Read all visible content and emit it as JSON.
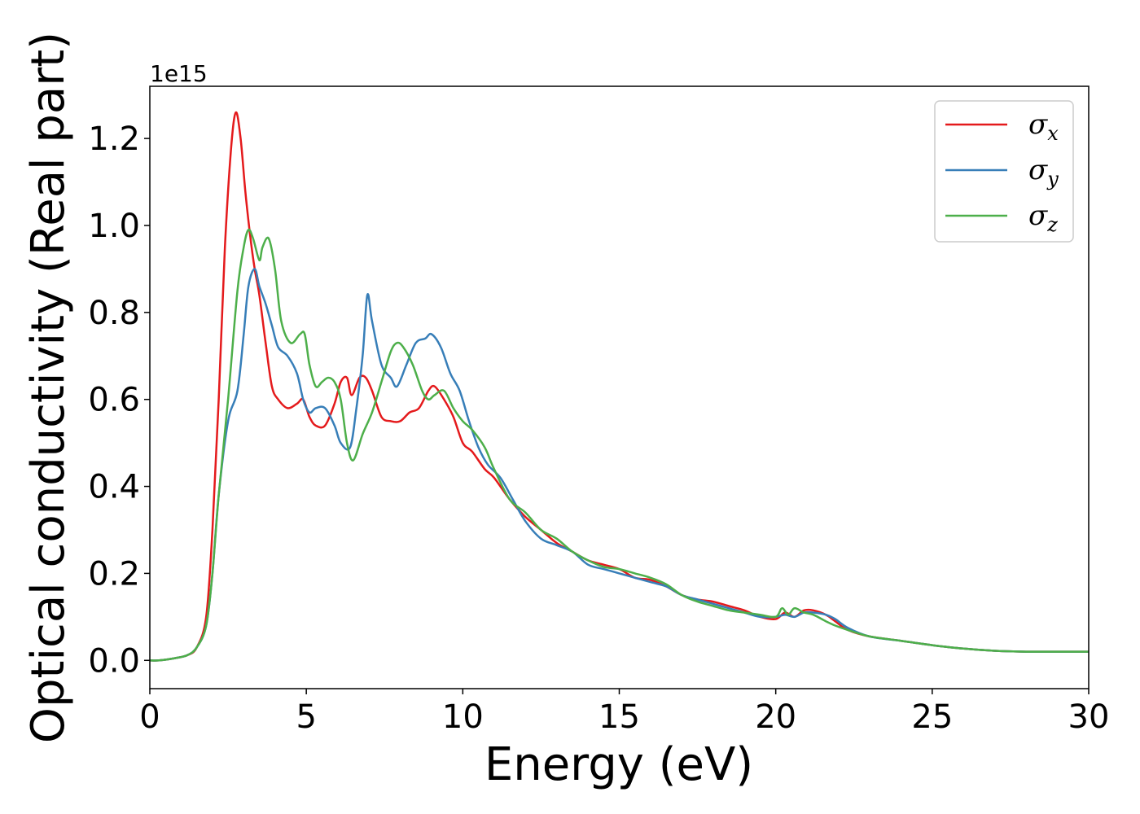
{
  "chart_data": {
    "type": "line",
    "xlabel": "Energy (eV)",
    "ylabel": "Optical conductivity (Real part)",
    "y_offset_label": "1e15",
    "xlim": [
      0,
      30
    ],
    "ylim": [
      -0.065,
      1.32
    ],
    "x_ticks": [
      0,
      5,
      10,
      15,
      20,
      25,
      30
    ],
    "x_tick_labels": [
      "0",
      "5",
      "10",
      "15",
      "20",
      "25",
      "30"
    ],
    "y_ticks": [
      0.0,
      0.2,
      0.4,
      0.6,
      0.8,
      1.0,
      1.2
    ],
    "y_tick_labels": [
      "0.0",
      "0.2",
      "0.4",
      "0.6",
      "0.8",
      "1.0",
      "1.2"
    ],
    "grid": false,
    "legend_position": "top-right",
    "series": [
      {
        "name": "σx",
        "symbol": "σ",
        "subscript": "x",
        "color": "#e41a1c",
        "x": [
          0,
          0.3,
          0.8,
          1.2,
          1.5,
          1.8,
          2.0,
          2.2,
          2.4,
          2.6,
          2.75,
          2.9,
          3.05,
          3.2,
          3.35,
          3.5,
          3.7,
          3.9,
          4.1,
          4.4,
          4.7,
          4.9,
          5.1,
          5.3,
          5.6,
          5.9,
          6.1,
          6.3,
          6.45,
          6.7,
          6.9,
          7.1,
          7.4,
          7.7,
          8.0,
          8.3,
          8.6,
          8.9,
          9.1,
          9.4,
          9.7,
          10.0,
          10.3,
          10.7,
          11.0,
          11.5,
          12.0,
          12.5,
          13.0,
          13.5,
          14.0,
          14.5,
          15.0,
          15.5,
          16.0,
          16.5,
          17.0,
          17.5,
          18.0,
          18.5,
          19.0,
          19.5,
          20.0,
          20.3,
          20.6,
          20.9,
          21.2,
          21.6,
          21.9,
          22.3,
          23.0,
          24.0,
          25.0,
          26.0,
          27.0,
          28.0,
          29.0,
          30.0
        ],
        "y": [
          0.0,
          0.0,
          0.005,
          0.012,
          0.03,
          0.1,
          0.3,
          0.6,
          0.95,
          1.18,
          1.26,
          1.2,
          1.08,
          0.98,
          0.9,
          0.84,
          0.73,
          0.63,
          0.6,
          0.58,
          0.59,
          0.6,
          0.56,
          0.54,
          0.54,
          0.59,
          0.64,
          0.65,
          0.61,
          0.65,
          0.65,
          0.62,
          0.56,
          0.55,
          0.55,
          0.57,
          0.58,
          0.62,
          0.63,
          0.6,
          0.56,
          0.5,
          0.48,
          0.44,
          0.42,
          0.37,
          0.33,
          0.3,
          0.27,
          0.25,
          0.23,
          0.22,
          0.21,
          0.19,
          0.185,
          0.17,
          0.15,
          0.14,
          0.135,
          0.125,
          0.115,
          0.1,
          0.095,
          0.11,
          0.1,
          0.115,
          0.115,
          0.105,
          0.09,
          0.07,
          0.055,
          0.045,
          0.035,
          0.027,
          0.022,
          0.02,
          0.02,
          0.02
        ]
      },
      {
        "name": "σy",
        "symbol": "σ",
        "subscript": "y",
        "color": "#377eb8",
        "x": [
          0,
          0.3,
          0.8,
          1.2,
          1.5,
          1.8,
          2.0,
          2.2,
          2.5,
          2.8,
          3.0,
          3.15,
          3.35,
          3.5,
          3.7,
          3.9,
          4.1,
          4.4,
          4.7,
          4.9,
          5.1,
          5.3,
          5.6,
          5.9,
          6.1,
          6.4,
          6.6,
          6.8,
          6.95,
          7.1,
          7.4,
          7.7,
          7.9,
          8.2,
          8.5,
          8.8,
          9.0,
          9.3,
          9.6,
          9.9,
          10.2,
          10.5,
          10.8,
          11.2,
          11.6,
          12.0,
          12.5,
          13.0,
          13.5,
          14.0,
          14.5,
          15.0,
          15.5,
          16.0,
          16.5,
          17.0,
          17.5,
          18.0,
          18.5,
          19.0,
          19.5,
          20.0,
          20.3,
          20.6,
          20.9,
          21.2,
          21.6,
          21.9,
          22.3,
          23.0,
          24.0,
          25.0,
          26.0,
          27.0,
          28.0,
          29.0,
          30.0
        ],
        "y": [
          0.0,
          0.0,
          0.005,
          0.012,
          0.03,
          0.08,
          0.2,
          0.38,
          0.55,
          0.62,
          0.75,
          0.86,
          0.9,
          0.86,
          0.82,
          0.77,
          0.72,
          0.7,
          0.66,
          0.6,
          0.57,
          0.58,
          0.58,
          0.54,
          0.5,
          0.49,
          0.58,
          0.7,
          0.84,
          0.78,
          0.68,
          0.65,
          0.63,
          0.68,
          0.73,
          0.74,
          0.75,
          0.72,
          0.66,
          0.62,
          0.55,
          0.49,
          0.45,
          0.42,
          0.37,
          0.32,
          0.28,
          0.265,
          0.25,
          0.22,
          0.21,
          0.2,
          0.19,
          0.18,
          0.17,
          0.15,
          0.14,
          0.13,
          0.12,
          0.11,
          0.1,
          0.1,
          0.105,
          0.1,
          0.11,
          0.11,
          0.105,
          0.095,
          0.075,
          0.055,
          0.045,
          0.035,
          0.027,
          0.022,
          0.02,
          0.02,
          0.02
        ]
      },
      {
        "name": "σz",
        "symbol": "σ",
        "subscript": "z",
        "color": "#4daf4a",
        "x": [
          0,
          0.3,
          0.8,
          1.2,
          1.5,
          1.8,
          2.0,
          2.2,
          2.5,
          2.8,
          3.0,
          3.15,
          3.3,
          3.5,
          3.6,
          3.8,
          4.0,
          4.2,
          4.5,
          4.8,
          4.95,
          5.1,
          5.3,
          5.5,
          5.7,
          5.9,
          6.1,
          6.3,
          6.5,
          6.8,
          7.1,
          7.4,
          7.7,
          7.9,
          8.1,
          8.4,
          8.7,
          8.9,
          9.1,
          9.4,
          9.7,
          10.0,
          10.3,
          10.7,
          11.0,
          11.5,
          12.0,
          12.5,
          13.0,
          13.5,
          14.0,
          14.5,
          15.0,
          15.5,
          16.0,
          16.5,
          17.0,
          17.5,
          18.0,
          18.5,
          19.0,
          19.5,
          20.0,
          20.2,
          20.4,
          20.6,
          20.9,
          21.2,
          21.6,
          21.9,
          22.3,
          23.0,
          24.0,
          25.0,
          26.0,
          27.0,
          28.0,
          29.0,
          30.0
        ],
        "y": [
          0.0,
          0.0,
          0.005,
          0.012,
          0.03,
          0.08,
          0.2,
          0.38,
          0.6,
          0.85,
          0.95,
          0.99,
          0.97,
          0.92,
          0.95,
          0.97,
          0.9,
          0.78,
          0.73,
          0.75,
          0.75,
          0.68,
          0.63,
          0.64,
          0.65,
          0.64,
          0.6,
          0.5,
          0.46,
          0.52,
          0.57,
          0.64,
          0.71,
          0.73,
          0.72,
          0.68,
          0.62,
          0.6,
          0.61,
          0.62,
          0.58,
          0.55,
          0.53,
          0.49,
          0.44,
          0.37,
          0.34,
          0.3,
          0.28,
          0.25,
          0.23,
          0.215,
          0.21,
          0.2,
          0.19,
          0.175,
          0.15,
          0.135,
          0.125,
          0.115,
          0.11,
          0.105,
          0.1,
          0.12,
          0.105,
          0.12,
          0.11,
          0.105,
          0.09,
          0.08,
          0.07,
          0.055,
          0.045,
          0.035,
          0.027,
          0.022,
          0.02,
          0.02,
          0.02
        ]
      }
    ]
  }
}
